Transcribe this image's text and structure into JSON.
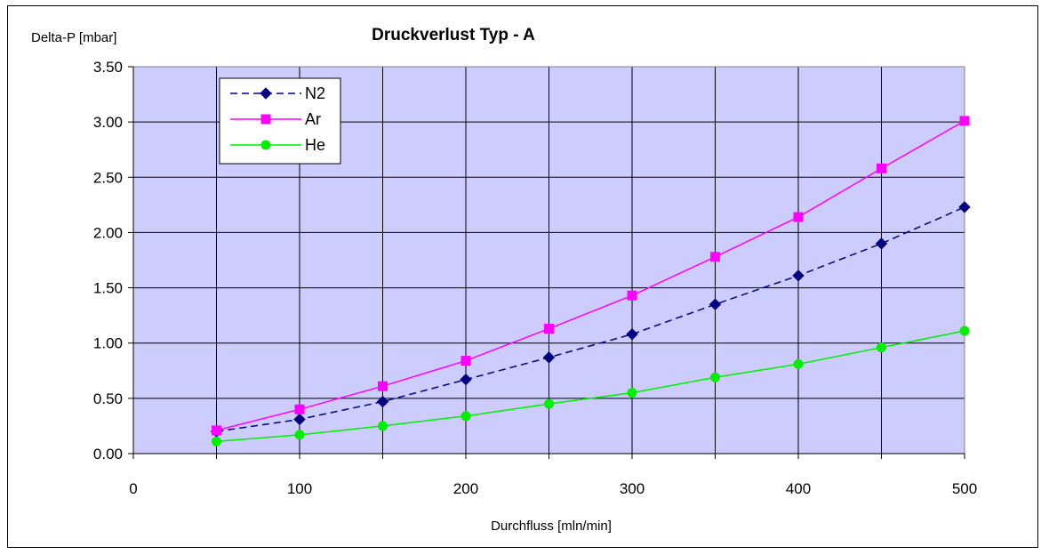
{
  "chart_data": {
    "type": "line",
    "title": "Druckverlust Typ - A",
    "ylabel": "Delta-P [mbar]",
    "xlabel": "Durchfluss [mln/min]",
    "xlim": [
      0,
      500
    ],
    "ylim": [
      0,
      3.5
    ],
    "xticks": [
      "0",
      "100",
      "200",
      "300",
      "400",
      "500"
    ],
    "yticks": [
      "0.00",
      "0.50",
      "1.00",
      "1.50",
      "2.00",
      "2.50",
      "3.00",
      "3.50"
    ],
    "x": [
      50,
      100,
      150,
      200,
      250,
      300,
      350,
      400,
      450,
      500
    ],
    "grid": true,
    "plot_background": "#ccccff",
    "legend_position": "top-left",
    "series": [
      {
        "name": "N2",
        "color": "#000080",
        "marker": "diamond",
        "dash": "dashed",
        "values": [
          0.2,
          0.31,
          0.47,
          0.67,
          0.87,
          1.08,
          1.35,
          1.61,
          1.9,
          2.23
        ]
      },
      {
        "name": "Ar",
        "color": "#ff00ff",
        "marker": "square",
        "dash": "solid",
        "values": [
          0.21,
          0.4,
          0.61,
          0.84,
          1.13,
          1.43,
          1.78,
          2.14,
          2.58,
          3.01
        ]
      },
      {
        "name": "He",
        "color": "#00ee00",
        "marker": "circle",
        "dash": "solid",
        "values": [
          0.11,
          0.17,
          0.25,
          0.34,
          0.45,
          0.55,
          0.69,
          0.81,
          0.96,
          1.11
        ]
      }
    ]
  }
}
